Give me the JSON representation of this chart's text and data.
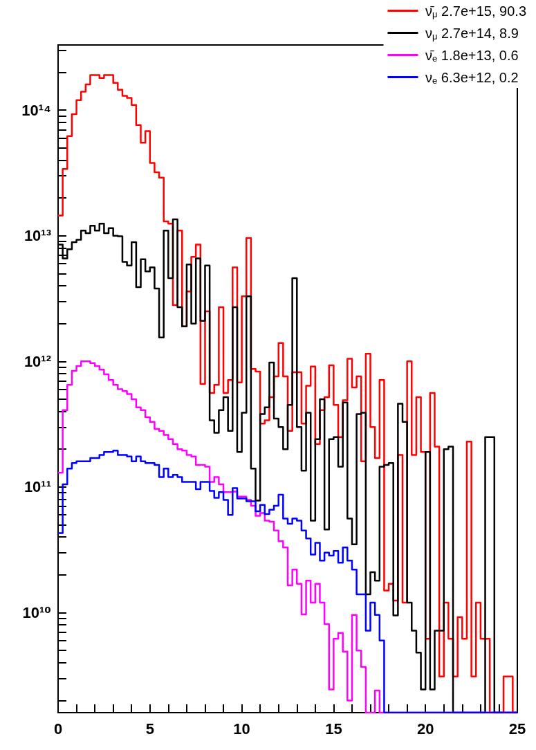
{
  "chart_data": {
    "type": "histogram",
    "bins": [
      0,
      0.25,
      0.5,
      0.75,
      1,
      1.25,
      1.5,
      1.75,
      2,
      2.25,
      2.5,
      2.75,
      3,
      3.25,
      3.5,
      3.75,
      4,
      4.25,
      4.5,
      4.75,
      5,
      5.25,
      5.5,
      5.75,
      6,
      6.25,
      6.5,
      6.75,
      7,
      7.25,
      7.5,
      7.75,
      8,
      8.25,
      8.5,
      8.75,
      9,
      9.25,
      9.5,
      9.75,
      10,
      10.25,
      10.5,
      10.75,
      11,
      11.25,
      11.5,
      11.75,
      12,
      12.25,
      12.5,
      12.75,
      13,
      13.25,
      13.5,
      13.75,
      14,
      14.25,
      14.5,
      14.75,
      15,
      15.25,
      15.5,
      15.75,
      16,
      16.25,
      16.5,
      16.75,
      17,
      17.25,
      17.5,
      17.75,
      18,
      18.25,
      18.5,
      18.75,
      19,
      19.25,
      19.5,
      19.75,
      20,
      20.25,
      20.5,
      20.75,
      21,
      21.25,
      21.5,
      21.75,
      22,
      22.25,
      22.5,
      22.75,
      23,
      23.25,
      23.5,
      23.75,
      24,
      24.25,
      24.5,
      24.75,
      25
    ],
    "series": [
      {
        "name": "ν̄$_{μ}$ 2.7e+15, 90.3",
        "color": "#ff0000",
        "values": [
          14500000000000.0,
          34000000000000.0,
          62000000000000.0,
          93000000000000.0,
          120000000000000.0,
          140000000000000.0,
          160000000000000.0,
          190000000000000.0,
          190000000000000.0,
          180000000000000.0,
          190000000000000.0,
          190000000000000.0,
          165000000000000.0,
          145000000000000.0,
          130000000000000.0,
          125000000000000.0,
          110000000000000.0,
          76000000000000.0,
          55000000000000.0,
          68000000000000.0,
          38000000000000.0,
          32000000000000.0,
          29000000000000.0,
          13000000000000.0,
          12500000000000.0,
          2800000000000.0,
          11000000000000.0,
          1900000000000.0,
          3600000000000.0,
          6800000000000.0,
          8500000000000.0,
          660000000000.0,
          2500000000000.0,
          560000000000.0,
          650000000000.0,
          2700000000000.0,
          560000000000.0,
          710000000000.0,
          5600000000000.0,
          680000000000.0,
          3300000000000.0,
          9600000000000.0,
          870000000000.0,
          830000000000.0,
          320000000000.0,
          340000000000.0,
          520000000000.0,
          760000000000.0,
          1400000000000.0,
          760000000000.0,
          280000000000.0,
          820000000000.0,
          820000000000.0,
          320000000000.0,
          640000000000.0,
          910000000000.0,
          220000000000.0,
          410000000000.0,
          520000000000.0,
          930000000000.0,
          450000000000.0,
          250000000000.0,
          490000000000.0,
          1050000000000.0,
          620000000000.0,
          760000000000.0,
          160000000000.0,
          1150000000000.0,
          300000000000.0,
          170000000000.0,
          710000000000.0,
          15000000000.0,
          17000000000.0,
          12500000000.0,
          180000000000.0,
          12000000000.0,
          1000000000000.0,
          180000000000.0,
          520000000000.0,
          190000000000.0,
          6200000000.0,
          560000000000.0,
          210000000000.0,
          3100000000.0,
          12000000000.0,
          6200000000.0,
          3100000000.0,
          9200000000.0,
          6200000000.0,
          230000000000.0,
          3100000000.0,
          12000000000.0,
          6200000000.0,
          6200000000.0,
          null,
          null,
          null,
          3100000000.0,
          3100000000.0,
          null
        ]
      },
      {
        "name": "ν$_{μ}$ 2.7e+14, 8.9",
        "color": "#000000",
        "values": [
          8500000000000.0,
          6600000000000.0,
          7800000000000.0,
          8900000000000.0,
          9300000000000.0,
          11000000000000.0,
          10500000000000.0,
          12000000000000.0,
          11000000000000.0,
          12500000000000.0,
          10500000000000.0,
          11500000000000.0,
          10000000000000.0,
          9900000000000.0,
          6200000000000.0,
          5800000000000.0,
          8900000000000.0,
          3900000000000.0,
          6500000000000.0,
          5200000000000.0,
          5600000000000.0,
          3800000000000.0,
          1550000000000.0,
          11000000000000.0,
          4600000000000.0,
          13500000000000.0,
          2700000000000.0,
          1900000000000.0,
          5900000000000.0,
          2000000000000.0,
          6600000000000.0,
          2100000000000.0,
          5800000000000.0,
          340000000000.0,
          270000000000.0,
          410000000000.0,
          520000000000.0,
          280000000000.0,
          2700000000000.0,
          190000000000.0,
          390000000000.0,
          3300000000000.0,
          140000000000.0,
          78000000000.0,
          380000000000.0,
          430000000000.0,
          980000000000.0,
          350000000000.0,
          300000000000.0,
          200000000000.0,
          450000000000.0,
          4600000000000.0,
          300000000000.0,
          135000000000.0,
          390000000000.0,
          54000000000.0,
          240000000000.0,
          500000000000.0,
          46000000000.0,
          240000000000.0,
          250000000000.0,
          145000000000.0,
          470000000000.0,
          56000000000.0,
          35000000000.0,
          380000000000.0,
          390000000000.0,
          14000000000.0,
          21000000000.0,
          18000000000.0,
          145000000000.0,
          150000000000.0,
          155000000000.0,
          9500000000.0,
          460000000000.0,
          330000000000.0,
          12000000000.0,
          7200000000.0,
          4800000000.0,
          2450000000.0,
          190000000000.0,
          2450000000.0,
          7200000000.0,
          7200000000.0,
          200000000000.0,
          210000000000.0,
          null,
          null,
          null,
          null,
          null,
          null,
          null,
          250000000000.0,
          250000000000.0,
          null,
          null,
          null,
          null,
          null
        ]
      },
      {
        "name": "ν̄$_{e}$ 1.8e+13, 0.6",
        "color": "#ff00ff",
        "values": [
          130000000000.0,
          410000000000.0,
          650000000000.0,
          840000000000.0,
          920000000000.0,
          1000000000000.0,
          1000000000000.0,
          970000000000.0,
          920000000000.0,
          860000000000.0,
          790000000000.0,
          710000000000.0,
          650000000000.0,
          600000000000.0,
          580000000000.0,
          550000000000.0,
          500000000000.0,
          430000000000.0,
          410000000000.0,
          360000000000.0,
          330000000000.0,
          290000000000.0,
          280000000000.0,
          260000000000.0,
          240000000000.0,
          220000000000.0,
          200000000000.0,
          195000000000.0,
          180000000000.0,
          175000000000.0,
          150000000000.0,
          150000000000.0,
          145000000000.0,
          110000000000.0,
          120000000000.0,
          105000000000.0,
          91000000000.0,
          91000000000.0,
          92000000000.0,
          84000000000.0,
          84000000000.0,
          79000000000.0,
          71000000000.0,
          59000000000.0,
          62000000000.0,
          54000000000.0,
          53000000000.0,
          45000000000.0,
          37000000000.0,
          33000000000.0,
          16500000000.0,
          22000000000.0,
          17000000000.0,
          9700000000.0,
          18000000000.0,
          12000000000.0,
          17000000000.0,
          12000000000.0,
          8100000000.0,
          2450000000.0,
          6200000000.0,
          6900000000.0,
          4900000000.0,
          2000000000.0,
          9600000000.0,
          5000000000.0,
          3700000000.0,
          null,
          null,
          2400000000.0,
          null,
          null,
          null,
          null,
          null,
          null,
          null,
          null,
          null,
          null,
          null,
          null,
          null,
          null,
          null,
          null,
          null,
          null,
          null,
          null,
          null,
          null,
          null,
          null,
          null,
          null,
          null,
          null,
          null,
          null
        ]
      },
      {
        "name": "ν$_{e}$ 6.3e+12, 0.2",
        "color": "#0000ff",
        "values": [
          43000000000.0,
          105000000000.0,
          140000000000.0,
          155000000000.0,
          160000000000.0,
          160000000000.0,
          160000000000.0,
          170000000000.0,
          170000000000.0,
          180000000000.0,
          190000000000.0,
          190000000000.0,
          195000000000.0,
          180000000000.0,
          180000000000.0,
          175000000000.0,
          160000000000.0,
          175000000000.0,
          160000000000.0,
          155000000000.0,
          155000000000.0,
          150000000000.0,
          120000000000.0,
          140000000000.0,
          120000000000.0,
          125000000000.0,
          120000000000.0,
          110000000000.0,
          110000000000.0,
          110000000000.0,
          96000000000.0,
          110000000000.0,
          110000000000.0,
          93000000000.0,
          82000000000.0,
          91000000000.0,
          79000000000.0,
          60000000000.0,
          98000000000.0,
          81000000000.0,
          81000000000.0,
          77000000000.0,
          77000000000.0,
          64000000000.0,
          72000000000.0,
          61000000000.0,
          66000000000.0,
          71000000000.0,
          87000000000.0,
          56000000000.0,
          51000000000.0,
          56000000000.0,
          54000000000.0,
          45000000000.0,
          39000000000.0,
          29000000000.0,
          36000000000.0,
          26000000000.0,
          30000000000.0,
          28500000000.0,
          31000000000.0,
          25000000000.0,
          33000000000.0,
          26000000000.0,
          22000000000.0,
          14000000000.0,
          14000000000.0,
          7200000000.0,
          12000000000.0,
          9600000000.0,
          6000000000.0,
          null,
          null,
          null,
          null,
          null,
          null,
          null,
          null,
          null,
          null,
          null,
          null,
          null,
          null,
          null,
          null,
          null,
          null,
          null,
          null,
          null,
          null,
          null,
          null,
          null,
          null,
          null,
          null,
          null
        ]
      }
    ],
    "xlim": [
      0,
      25
    ],
    "xticks": [
      0,
      {
        "value": 1,
        "label": null
      },
      {
        "value": 2,
        "label": null
      },
      {
        "value": 3,
        "label": null
      },
      {
        "value": 4,
        "label": null
      },
      5,
      {
        "value": 6,
        "label": null
      },
      {
        "value": 7,
        "label": null
      },
      {
        "value": 8,
        "label": null
      },
      {
        "value": 9,
        "label": null
      },
      10,
      {
        "value": 11,
        "label": null
      },
      {
        "value": 12,
        "label": null
      },
      {
        "value": 13,
        "label": null
      },
      {
        "value": 14,
        "label": null
      },
      15,
      {
        "value": 16,
        "label": null
      },
      {
        "value": 17,
        "label": null
      },
      {
        "value": 18,
        "label": null
      },
      {
        "value": 19,
        "label": null
      },
      20,
      {
        "value": 21,
        "label": null
      },
      {
        "value": 22,
        "label": null
      },
      {
        "value": 23,
        "label": null
      },
      {
        "value": 24,
        "label": null
      },
      25
    ],
    "ylim": [
      1600000000.0,
      330000000000000.0
    ],
    "yticks": [
      {
        "value": 2000000000.0,
        "label": null
      },
      {
        "value": 3000000000.0,
        "label": null
      },
      {
        "value": 4000000000.0,
        "label": null
      },
      {
        "value": 5000000000.0,
        "label": null
      },
      {
        "value": 6000000000.0,
        "label": null
      },
      {
        "value": 7000000000.0,
        "label": null
      },
      {
        "value": 8000000000.0,
        "label": null
      },
      {
        "value": 9000000000.0,
        "label": null
      },
      {
        "value": 10000000000.0,
        "label": "10¹⁰"
      },
      {
        "value": 20000000000.0,
        "label": null
      },
      {
        "value": 30000000000.0,
        "label": null
      },
      {
        "value": 40000000000.0,
        "label": null
      },
      {
        "value": 50000000000.0,
        "label": null
      },
      {
        "value": 60000000000.0,
        "label": null
      },
      {
        "value": 70000000000.0,
        "label": null
      },
      {
        "value": 80000000000.0,
        "label": null
      },
      {
        "value": 90000000000.0,
        "label": null
      },
      {
        "value": 100000000000.0,
        "label": "10¹¹"
      },
      {
        "value": 200000000000.0,
        "label": null
      },
      {
        "value": 300000000000.0,
        "label": null
      },
      {
        "value": 400000000000.0,
        "label": null
      },
      {
        "value": 500000000000.0,
        "label": null
      },
      {
        "value": 600000000000.0,
        "label": null
      },
      {
        "value": 700000000000.0,
        "label": null
      },
      {
        "value": 800000000000.0,
        "label": null
      },
      {
        "value": 900000000000.0,
        "label": null
      },
      {
        "value": 1000000000000.0,
        "label": "10¹²"
      },
      {
        "value": 2000000000000.0,
        "label": null
      },
      {
        "value": 3000000000000.0,
        "label": null
      },
      {
        "value": 4000000000000.0,
        "label": null
      },
      {
        "value": 5000000000000.0,
        "label": null
      },
      {
        "value": 6000000000000.0,
        "label": null
      },
      {
        "value": 7000000000000.0,
        "label": null
      },
      {
        "value": 8000000000000.0,
        "label": null
      },
      {
        "value": 9000000000000.0,
        "label": null
      },
      {
        "value": 10000000000000.0,
        "label": "10¹³"
      },
      {
        "value": 20000000000000.0,
        "label": null
      },
      {
        "value": 30000000000000.0,
        "label": null
      },
      {
        "value": 40000000000000.0,
        "label": null
      },
      {
        "value": 50000000000000.0,
        "label": null
      },
      {
        "value": 60000000000000.0,
        "label": null
      },
      {
        "value": 70000000000000.0,
        "label": null
      },
      {
        "value": 80000000000000.0,
        "label": null
      },
      {
        "value": 90000000000000.0,
        "label": null
      },
      {
        "value": 100000000000000.0,
        "label": "10¹⁴"
      },
      {
        "value": 200000000000000.0,
        "label": null
      },
      {
        "value": 300000000000000.0,
        "label": null
      }
    ],
    "log": "y",
    "legend": "top right"
  }
}
